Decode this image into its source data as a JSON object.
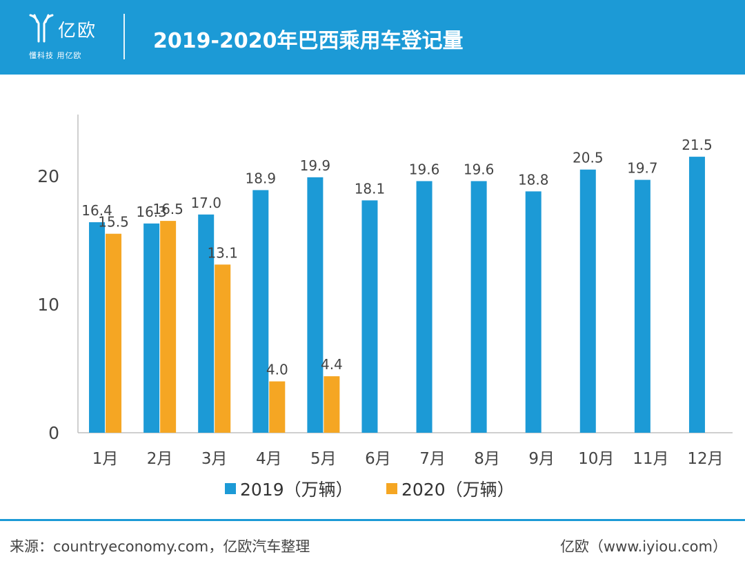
{
  "header": {
    "brand": "亿欧",
    "slogan": "懂科技 用亿欧",
    "title": "2019-2020年巴西乘用车登记量"
  },
  "colors": {
    "header_bg": "#1c9ad6",
    "series_2019": "#1c9ad6",
    "series_2020": "#f5a623"
  },
  "chart_data": {
    "type": "bar",
    "categories": [
      "1月",
      "2月",
      "3月",
      "4月",
      "5月",
      "6月",
      "7月",
      "8月",
      "9月",
      "10月",
      "11月",
      "12月"
    ],
    "series": [
      {
        "name": "2019（万辆）",
        "values": [
          16.4,
          16.3,
          17.0,
          18.9,
          19.9,
          18.1,
          19.6,
          19.6,
          18.8,
          20.5,
          19.7,
          21.5
        ]
      },
      {
        "name": "2020（万辆）",
        "values": [
          15.5,
          16.5,
          13.1,
          4.0,
          4.4,
          null,
          null,
          null,
          null,
          null,
          null,
          null
        ]
      }
    ],
    "yticks": [
      0,
      10,
      20
    ],
    "ylim": [
      0,
      25
    ],
    "grid": false,
    "legend": "bottom"
  },
  "footer": {
    "source": "来源：countryeconomy.com，亿欧汽车整理",
    "brand": "亿欧（www.iyiou.com）"
  }
}
